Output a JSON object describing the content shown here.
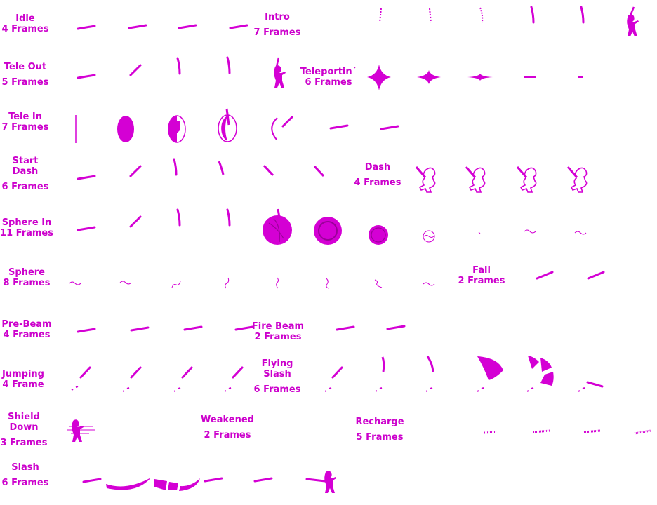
{
  "sheet": {
    "accent_color": "#cc00cc",
    "sprite_color": "#d400d4",
    "background": "#ffffff"
  },
  "labels": {
    "idle": {
      "name": "Idle",
      "frames": "4 Frames"
    },
    "intro": {
      "name": "Intro",
      "frames": "7 Frames"
    },
    "tele_out": {
      "name": "Tele Out",
      "frames": "5 Frames"
    },
    "teleporting": {
      "name": "Teleportin´",
      "frames": "6 Frames"
    },
    "tele_in": {
      "name": "Tele In",
      "frames": "7 Frames"
    },
    "start_dash": {
      "name1": "Start",
      "name2": "Dash",
      "frames": "6 Frames"
    },
    "dash": {
      "name": "Dash",
      "frames": "4 Frames"
    },
    "sphere_in": {
      "name": "Sphere In",
      "frames": "11 Frames"
    },
    "sphere": {
      "name": "Sphere",
      "frames": "8 Frames"
    },
    "fall": {
      "name": "Fall",
      "frames": "2 Frames"
    },
    "pre_beam": {
      "name": "Pre-Beam",
      "frames": "4 Frames"
    },
    "fire_beam": {
      "name": "Fire Beam",
      "frames": "2 Frames"
    },
    "jumping": {
      "name": "Jumping",
      "frames": "4 Frame"
    },
    "flying_slash": {
      "name1": "Flying",
      "name2": "Slash",
      "frames": "6 Frames"
    },
    "shield_down": {
      "name1": "Shield",
      "name2": "Down",
      "frames": "3 Frames"
    },
    "weakened": {
      "name": "Weakened",
      "frames": "2 Frames"
    },
    "recharge": {
      "name": "Recharge",
      "frames": "5 Frames"
    },
    "slash": {
      "name": "Slash",
      "frames": "6 Frames"
    }
  }
}
